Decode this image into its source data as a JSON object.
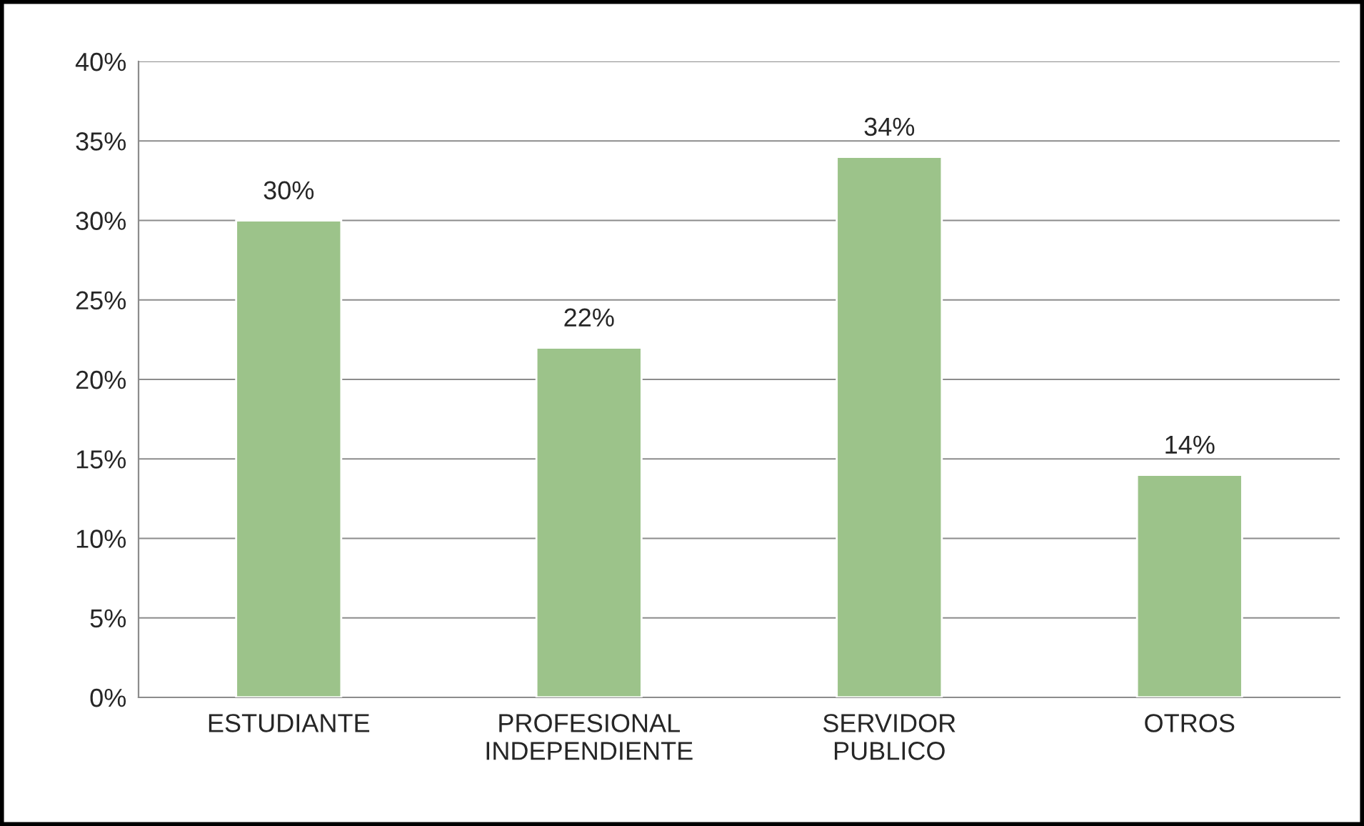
{
  "chart_data": {
    "type": "bar",
    "categories": [
      "ESTUDIANTE",
      "PROFESIONAL INDEPENDIENTE",
      "SERVIDOR PUBLICO",
      "OTROS"
    ],
    "values": [
      30,
      22,
      34,
      14
    ],
    "color": "#9cc38a",
    "data_labels": true,
    "value_labels": [
      "30%",
      "22%",
      "34%",
      "14%"
    ],
    "ylim": [
      0,
      40
    ],
    "yticks": [
      {
        "value": 0,
        "label": "0%"
      },
      {
        "value": 5,
        "label": "5%"
      },
      {
        "value": 10,
        "label": "10%"
      },
      {
        "value": 15,
        "label": "15%"
      },
      {
        "value": 20,
        "label": "20%"
      },
      {
        "value": 25,
        "label": "25%"
      },
      {
        "value": 30,
        "label": "30%"
      },
      {
        "value": 35,
        "label": "35%"
      },
      {
        "value": 40,
        "label": "40%"
      }
    ],
    "grid": "y",
    "legend": false
  }
}
